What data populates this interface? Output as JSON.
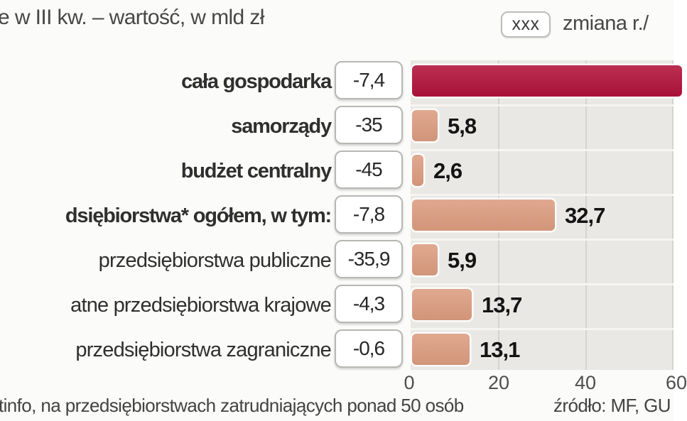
{
  "title": "e w III kw. – wartość, w mld zł",
  "legend": {
    "swatch_label": "xxx",
    "label": "zmiana r./"
  },
  "chart_data": {
    "type": "bar",
    "orientation": "horizontal",
    "title_fragment": "e w III kw. – wartość, w mld zł",
    "value_unit": "mld zł",
    "legend_note": "xxx = zmiana r./",
    "legend_position": "top-right",
    "grid": true,
    "categories": [
      "cała gospodarka",
      "samorządy",
      "budżet centralny",
      "dsiębiorstwa* ogółem, w tym:",
      "przedsiębiorstwa publiczne",
      "atne przedsiębiorstwa krajowe",
      "przedsiębiorstwa zagraniczne"
    ],
    "values": [
      null,
      5.8,
      2.6,
      32.7,
      5.9,
      13.7,
      13.1
    ],
    "value_labels": [
      "",
      "5,8",
      "2,6",
      "32,7",
      "5,9",
      "13,7",
      "13,1"
    ],
    "change_yoy_labels": [
      "-7,4",
      "-35",
      "-45",
      "-7,8",
      "-35,9",
      "-4,3",
      "-0,6"
    ],
    "bar_colors": [
      "#b1123a",
      "#dc9d80",
      "#dc9d80",
      "#dc9d80",
      "#dc9d80",
      "#dc9d80",
      "#dc9d80"
    ],
    "bold_categories": [
      true,
      true,
      true,
      true,
      false,
      false,
      false
    ],
    "first_bar_clipped_at_right_edge": true,
    "x_ticks": [
      "0",
      "20",
      "40",
      "60"
    ],
    "x_tick_values": [
      0,
      20,
      40,
      60
    ],
    "xlim": [
      0,
      60
    ]
  },
  "colors": {
    "page_bg": "#fbfbf9",
    "plot_bg": "#e9e8e4",
    "gridline": "#d4d3cf",
    "accent_red": "#b1123a",
    "accent_salmon": "#dc9d80",
    "box_border": "#b7b7b3"
  },
  "footer": {
    "note": "tinfo, na przedsiębiorstwach zatrudniających ponad 50 osób",
    "source": "źródło: MF, GU"
  }
}
